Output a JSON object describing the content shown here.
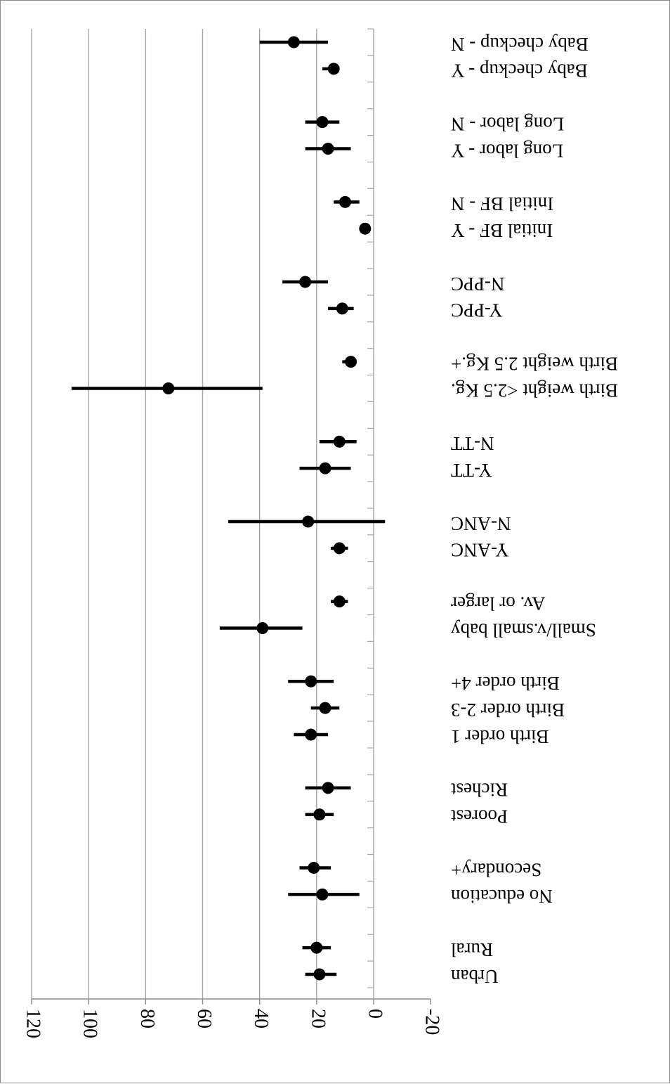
{
  "chart_data": {
    "type": "scatter",
    "variant": "forest-plot with error bars",
    "orientation": "rendered upside-down (rotated 180°)",
    "title": "",
    "xlabel": "",
    "ylabel": "",
    "xlim": [
      -20,
      120
    ],
    "xticks": [
      -20,
      0,
      20,
      40,
      60,
      80,
      100,
      120
    ],
    "gridlines": "vertical, major ticks",
    "marker_color": "#000000",
    "gridline_color": "#a6a6a6",
    "categories": [
      "Urban",
      "Rural",
      "No education",
      "Secondary+",
      "Poorest",
      "Richest",
      "Birth order 1",
      "Birth order 2-3",
      "Birth order 4+",
      "Small/v.small baby",
      "Av. or larger",
      "Y-ANC",
      "N-ANC",
      "Y-TT",
      "N-TT",
      "Birth weight <2.5 Kg.",
      "Birth weight 2.5 Kg.+",
      "Y-PPC",
      "N-PPC",
      "Initial BF - Y",
      "Initial BF - N",
      "Long labor - Y",
      "Long labor - N",
      "Baby checkup - Y",
      "Baby checkup - N"
    ],
    "series": [
      {
        "values": [
          19,
          20,
          18,
          21,
          19,
          16,
          22,
          17,
          22,
          39,
          12,
          12,
          23,
          17,
          12,
          72,
          8,
          11,
          24,
          3,
          10,
          16,
          18,
          14,
          28
        ],
        "lower": [
          13,
          15,
          5,
          15,
          14,
          8,
          16,
          12,
          14,
          25,
          9,
          9,
          -4,
          8,
          6,
          39,
          6,
          7,
          16,
          2,
          5,
          8,
          12,
          12,
          16
        ],
        "upper": [
          24,
          25,
          30,
          26,
          24,
          24,
          28,
          22,
          30,
          54,
          15,
          15,
          51,
          26,
          19,
          106,
          11,
          16,
          32,
          4,
          14,
          24,
          24,
          18,
          40
        ]
      }
    ],
    "slots": [
      0,
      1,
      3,
      4,
      6,
      7,
      9,
      10,
      11,
      13,
      14,
      16,
      17,
      19,
      20,
      22,
      23,
      25,
      26,
      28,
      29,
      31,
      32,
      34,
      35
    ]
  }
}
